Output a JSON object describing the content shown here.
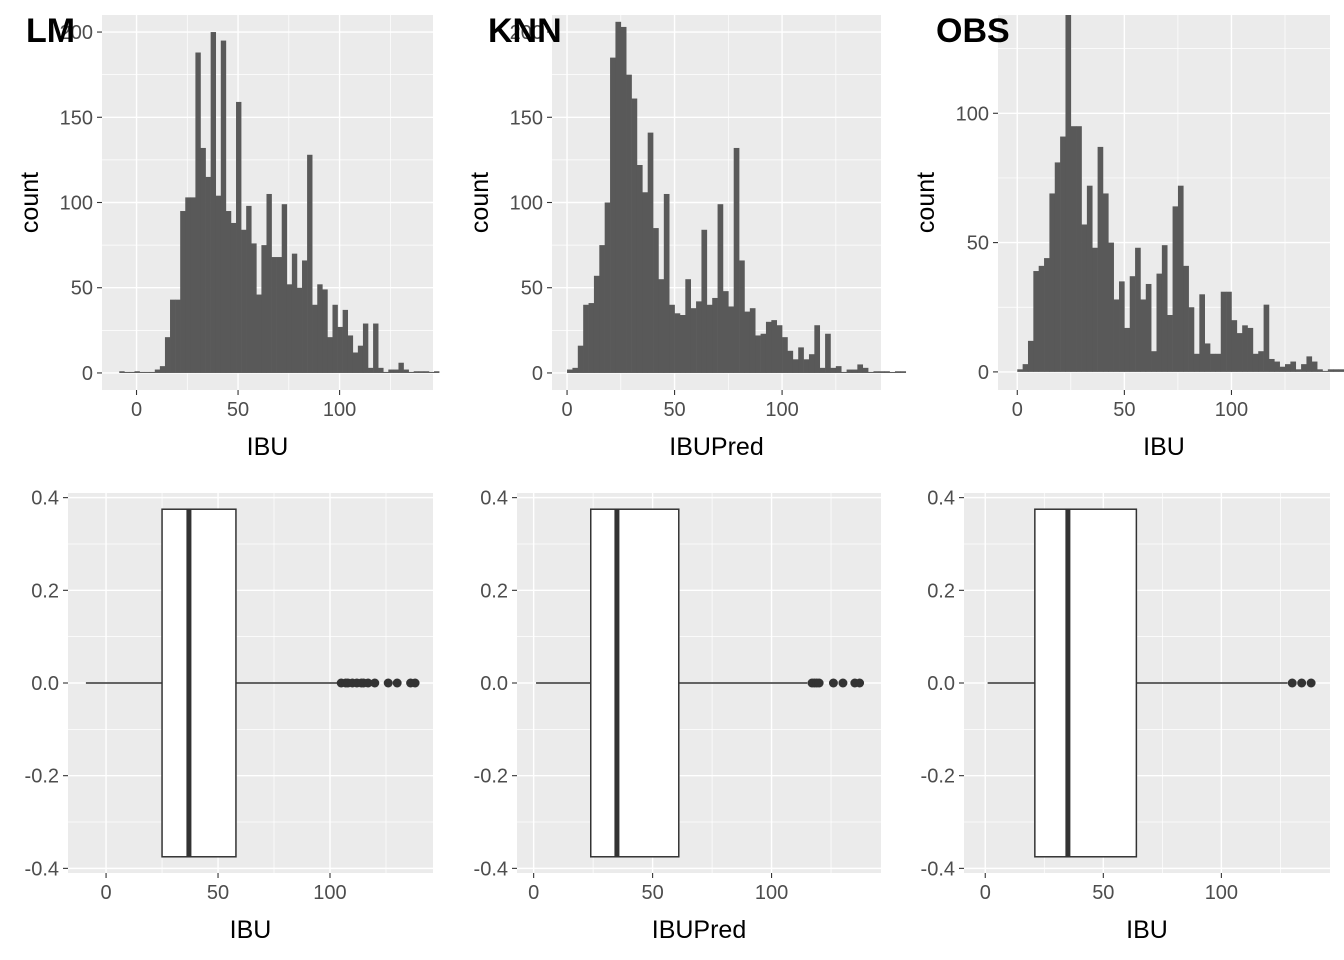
{
  "chart_data": [
    {
      "type": "bar",
      "tag": "LM",
      "xlabel": "IBU",
      "ylabel": "count",
      "xlim": [
        -17,
        146
      ],
      "ylim": [
        -10,
        210
      ],
      "xticks": [
        0,
        50,
        100
      ],
      "yticks": [
        0,
        50,
        100,
        150,
        200
      ],
      "yticklabels": [
        "0",
        "50",
        "100",
        "150",
        "200"
      ],
      "bin_start": -8.5,
      "bin_width": 2.5,
      "values": [
        1,
        0,
        0,
        1,
        0,
        0,
        0,
        2,
        4,
        21,
        43,
        43,
        95,
        103,
        103,
        188,
        132,
        115,
        200,
        104,
        195,
        95,
        88,
        159,
        84,
        98,
        76,
        46,
        75,
        105,
        68,
        68,
        99,
        52,
        70,
        50,
        66,
        128,
        40,
        52,
        49,
        21,
        40,
        27,
        37,
        22,
        12,
        16,
        29,
        3,
        29,
        3,
        0,
        2,
        2,
        6,
        2,
        0,
        1,
        1,
        1,
        0,
        1
      ]
    },
    {
      "type": "bar",
      "tag": "KNN",
      "xlabel": "IBUPred",
      "ylabel": "count",
      "xlim": [
        -7,
        146
      ],
      "ylim": [
        -10,
        210
      ],
      "xticks": [
        0,
        50,
        100
      ],
      "yticks": [
        0,
        50,
        100,
        150,
        200
      ],
      "yticklabels": [
        "0",
        "50",
        "100",
        "150",
        "200"
      ],
      "bin_start": 0,
      "bin_width": 2.5,
      "values": [
        2,
        3,
        16,
        40,
        41,
        57,
        75,
        100,
        185,
        206,
        203,
        175,
        161,
        122,
        106,
        141,
        85,
        55,
        105,
        40,
        35,
        34,
        55,
        38,
        42,
        84,
        40,
        44,
        99,
        48,
        39,
        132,
        66,
        36,
        38,
        22,
        23,
        30,
        31,
        28,
        21,
        13,
        8,
        15,
        8,
        11,
        28,
        3,
        23,
        3,
        4,
        0,
        2,
        2,
        5,
        3,
        0,
        1,
        1,
        1,
        0,
        1,
        1
      ]
    },
    {
      "type": "bar",
      "tag": "OBS",
      "xlabel": "IBU",
      "ylabel": "count",
      "xlim": [
        -9,
        146
      ],
      "ylim": [
        -7,
        138
      ],
      "xticks": [
        0,
        50,
        100
      ],
      "yticks": [
        0,
        50,
        100
      ],
      "yticklabels": [
        "0",
        "50",
        "100"
      ],
      "bin_start": 0,
      "bin_width": 2.5,
      "values": [
        1,
        3,
        12,
        39,
        41,
        44,
        69,
        81,
        91,
        138,
        95,
        95,
        57,
        72,
        48,
        87,
        69,
        50,
        28,
        35,
        17,
        37,
        48,
        28,
        34,
        8,
        38,
        49,
        22,
        64,
        72,
        41,
        25,
        7,
        30,
        11,
        7,
        7,
        31,
        31,
        20,
        15,
        18,
        17,
        7,
        8,
        26,
        5,
        4,
        2,
        3,
        4,
        1,
        3,
        6,
        4,
        1,
        0,
        1,
        1,
        1,
        0,
        1
      ]
    },
    {
      "type": "boxplot",
      "xlabel": "IBU",
      "xlim": [
        -17,
        146
      ],
      "ylim": [
        -0.41,
        0.41
      ],
      "xticks": [
        0,
        50,
        100
      ],
      "yticks": [
        0.4,
        0.2,
        0.0,
        -0.2,
        -0.4
      ],
      "yticklabels": [
        "0.4",
        "0.2",
        "0.0",
        "-0.2",
        "-0.4"
      ],
      "box_halfwidth": 0.375,
      "whisker_low": -9,
      "q1": 25,
      "median": 37,
      "q3": 58,
      "whisker_high": 104,
      "outliers": [
        105,
        107,
        108,
        110,
        112,
        114,
        115,
        117,
        120,
        126,
        130,
        136,
        138
      ]
    },
    {
      "type": "boxplot",
      "xlabel": "IBUPred",
      "xlim": [
        -7,
        146
      ],
      "ylim": [
        -0.41,
        0.41
      ],
      "xticks": [
        0,
        50,
        100
      ],
      "yticks": [
        0.4,
        0.2,
        0.0,
        -0.2,
        -0.4
      ],
      "yticklabels": [
        "0.4",
        "0.2",
        "0.0",
        "-0.2",
        "-0.4"
      ],
      "box_halfwidth": 0.375,
      "whisker_low": 1,
      "q1": 24,
      "median": 35,
      "q3": 61,
      "whisker_high": 115,
      "outliers": [
        117,
        118,
        119,
        120,
        126,
        130,
        135,
        137
      ]
    },
    {
      "type": "boxplot",
      "xlabel": "IBU",
      "xlim": [
        -9,
        146
      ],
      "ylim": [
        -0.41,
        0.41
      ],
      "xticks": [
        0,
        50,
        100
      ],
      "yticks": [
        0.4,
        0.2,
        0.0,
        -0.2,
        -0.4
      ],
      "yticklabels": [
        "0.4",
        "0.2",
        "0.0",
        "-0.2",
        "-0.4"
      ],
      "box_halfwidth": 0.375,
      "whisker_low": 1,
      "q1": 21,
      "median": 35,
      "q3": 64,
      "whisker_high": 128,
      "outliers": [
        130,
        134,
        138
      ]
    }
  ]
}
